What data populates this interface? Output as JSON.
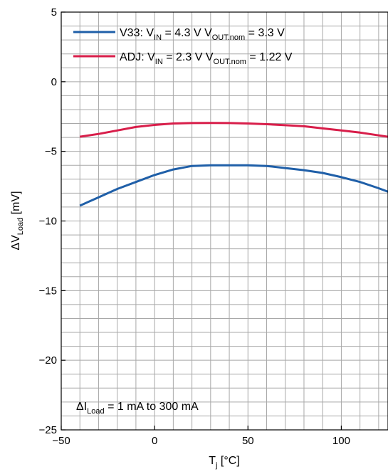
{
  "chart_data": {
    "type": "line",
    "xlim": [
      -50,
      125
    ],
    "ylim": [
      -25,
      5
    ],
    "x_ticks": [
      -50,
      0,
      50,
      100
    ],
    "y_ticks": [
      5,
      0,
      -5,
      -10,
      -15,
      -20,
      -25
    ],
    "x_tick_labels": [
      "−50",
      "0",
      "50",
      "100"
    ],
    "y_tick_labels": [
      "5",
      "0",
      "−5",
      "−10",
      "−15",
      "−20",
      "−25"
    ],
    "x_minor_step": 10,
    "y_minor_step": 1,
    "grid": true,
    "xlabel": {
      "main": "T",
      "sub": "j",
      "tail": " [°C]"
    },
    "ylabel": {
      "main": "ΔV",
      "sub": "Load",
      "tail": " [mV]"
    },
    "legend_position": "top-left",
    "series": [
      {
        "id": "v33",
        "legend": {
          "p1": "V33: V",
          "s1": "IN",
          "p2": " = 4.3 V V",
          "s2": "OUT.nom",
          "p3": " = 3.3 V"
        },
        "color": "#1f5fa8",
        "x": [
          -40,
          -30,
          -20,
          -10,
          0,
          10,
          20,
          30,
          40,
          50,
          60,
          70,
          80,
          90,
          100,
          110,
          120,
          125
        ],
        "y": [
          -8.9,
          -8.3,
          -7.7,
          -7.2,
          -6.7,
          -6.3,
          -6.05,
          -6.0,
          -6.0,
          -6.0,
          -6.05,
          -6.2,
          -6.35,
          -6.55,
          -6.85,
          -7.2,
          -7.65,
          -7.9
        ]
      },
      {
        "id": "adj",
        "legend": {
          "p1": "ADJ: V",
          "s1": "IN",
          "p2": " = 2.3 V V",
          "s2": "OUT.nom",
          "p3": " = 1.22 V"
        },
        "color": "#d81e4a",
        "x": [
          -40,
          -30,
          -20,
          -10,
          0,
          10,
          20,
          30,
          40,
          50,
          60,
          70,
          80,
          90,
          100,
          110,
          120,
          125
        ],
        "y": [
          -3.95,
          -3.75,
          -3.5,
          -3.25,
          -3.1,
          -3.0,
          -2.97,
          -2.96,
          -2.97,
          -3.0,
          -3.05,
          -3.12,
          -3.2,
          -3.35,
          -3.5,
          -3.65,
          -3.85,
          -3.95
        ]
      }
    ],
    "annotation": {
      "p1": "ΔI",
      "s1": "Load",
      "p2": " = 1 mA to 300 mA"
    }
  }
}
